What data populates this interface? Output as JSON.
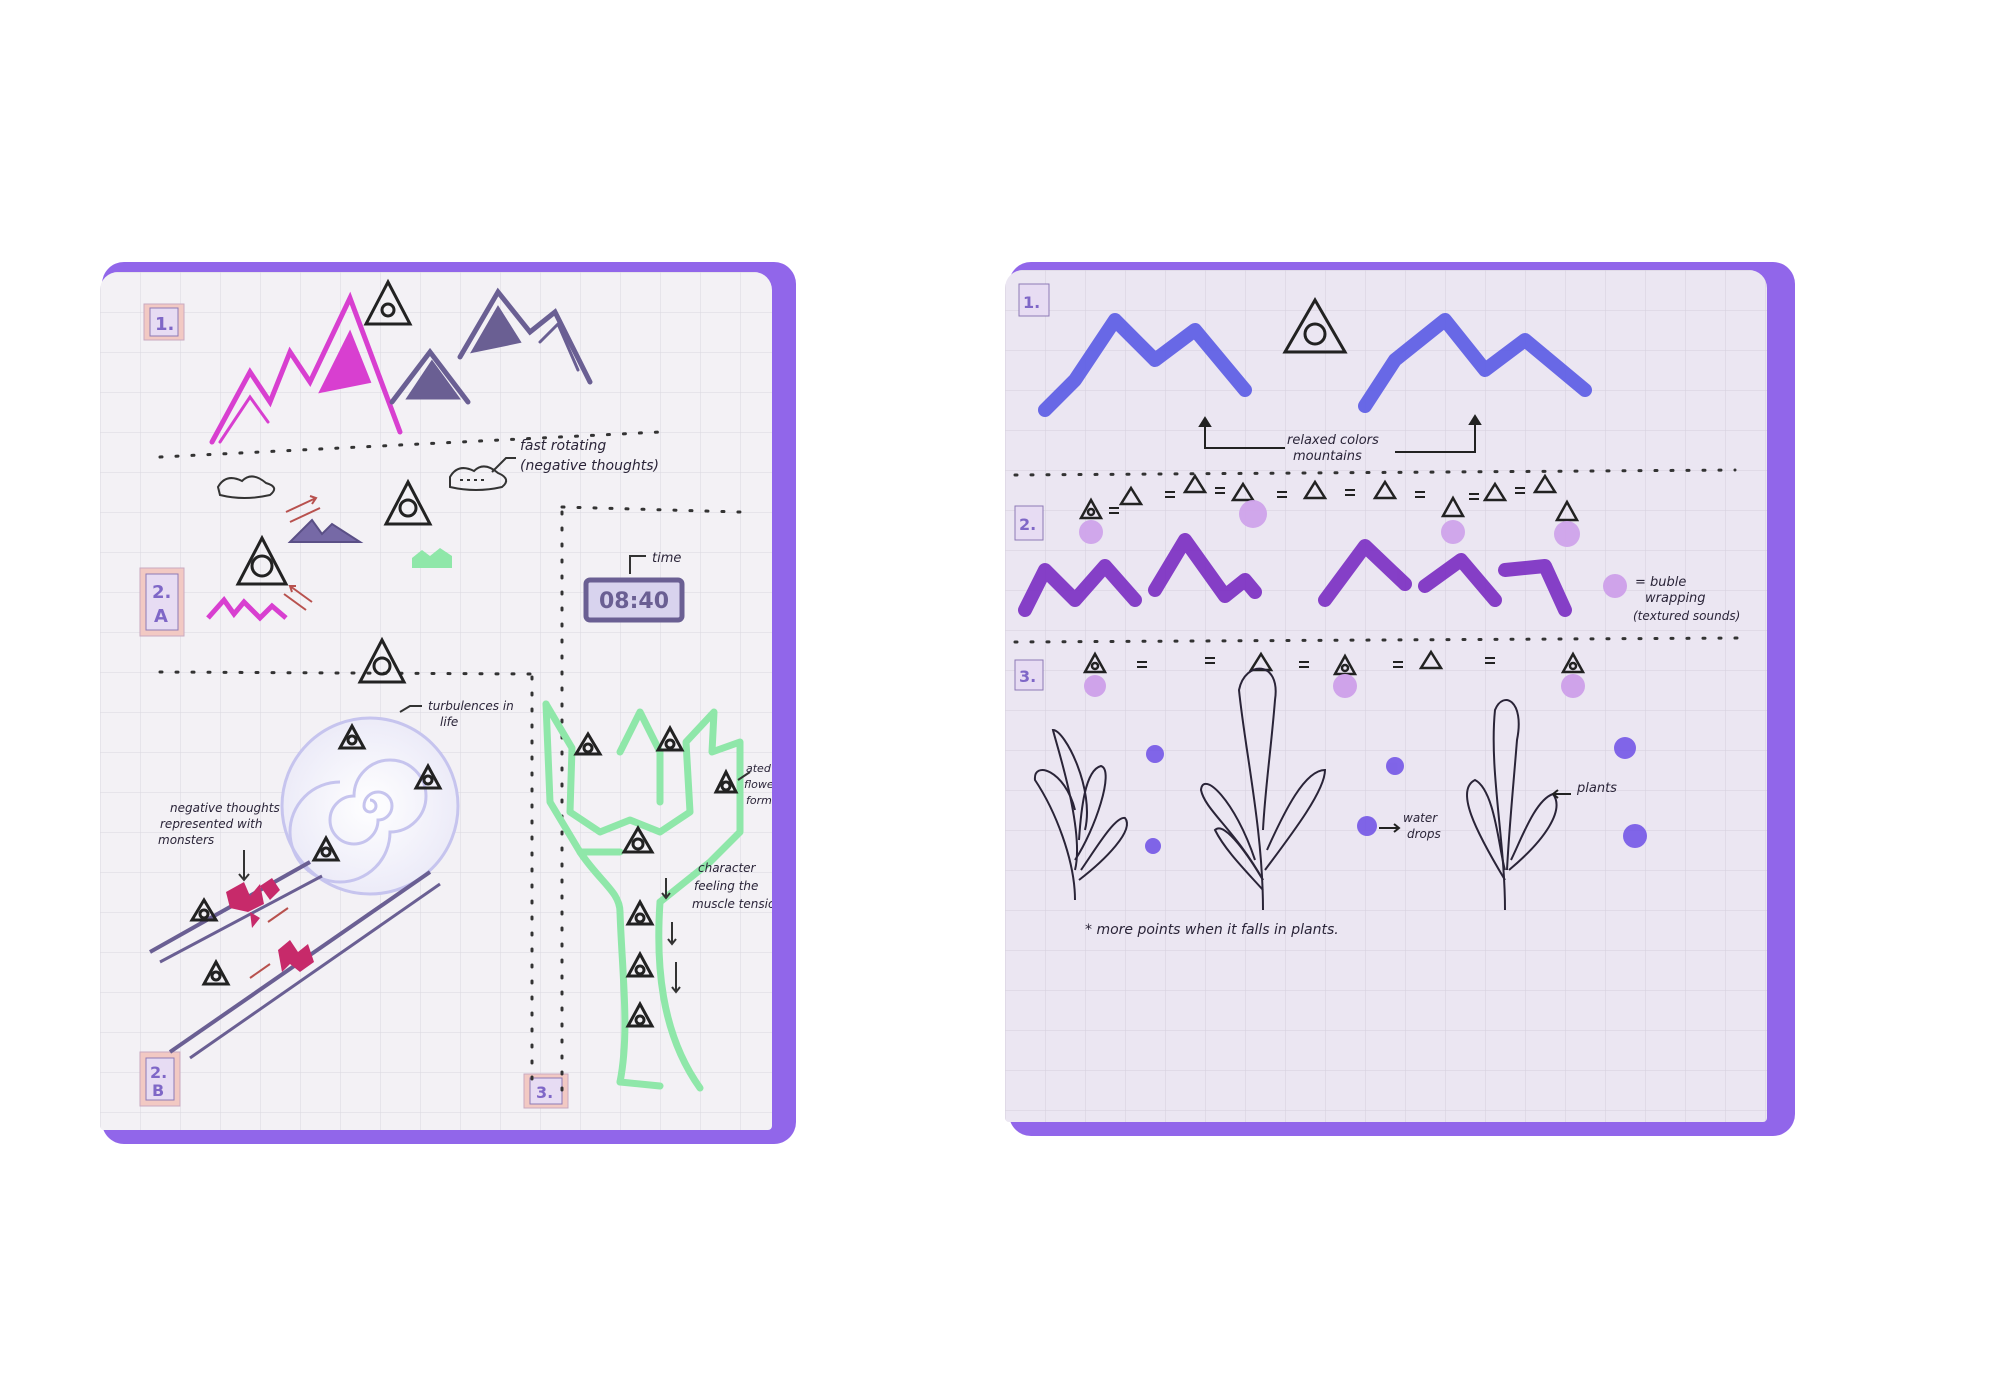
{
  "colors": {
    "accent": "#9166ea",
    "paper_left": "#f3f1f5",
    "paper_right": "#ebe6f2",
    "grid": "#d7d3de",
    "magenta": "#d83fd0",
    "slate": "#6a5f93",
    "green": "#8fe7a9",
    "blue": "#5a5ae4",
    "violet": "#7a2cc2",
    "bubble": "#cfa3ea",
    "drop": "#6d4ee6"
  },
  "left_sketch": {
    "section_tags": [
      "1.",
      "2.\nA",
      "2.\nB",
      "3."
    ],
    "timer": "08:40",
    "notes": {
      "fast_rotating": "fast rotating",
      "negative_thoughts_paren": "(negative thoughts)",
      "time": "time",
      "turbulences": "turbulences in",
      "life": "life",
      "monsters_line1": "negative thoughts",
      "monsters_line2": "represented with",
      "monsters_line3": "monsters",
      "flower_line1": "ated",
      "flower_line2": "flower",
      "flower_line3": "form",
      "character_line1": "character",
      "character_line2": "feeling the",
      "character_line3": "muscle tension"
    }
  },
  "right_sketch": {
    "section_tags": [
      "1.",
      "2.",
      "3."
    ],
    "notes": {
      "relaxed_line1": "relaxed colors",
      "relaxed_line2": "mountains",
      "bubble_line1": "= buble",
      "bubble_line2": "wrapping",
      "bubble_line3": "(textured sounds)",
      "water_line1": "water",
      "water_line2": "drops",
      "plants": "plants",
      "points": "* more points when it falls in plants."
    }
  }
}
